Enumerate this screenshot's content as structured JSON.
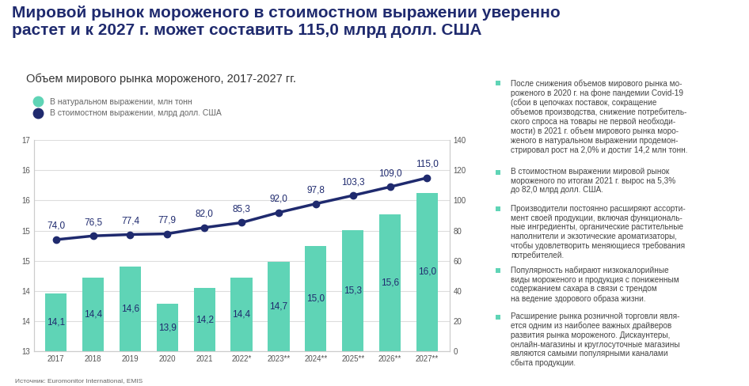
{
  "chart_data": {
    "type": "bar",
    "title": "Мировой рынок мороженого в стоимостном выражении уверенно\nрастет и к 2027 г. может составить 115,0 млрд долл. США",
    "subtitle": "Объем мирового рынка мороженого, 2017-2027 гг.",
    "categories": [
      "2017",
      "2018",
      "2019",
      "2020",
      "2021",
      "2022*",
      "2023**",
      "2024**",
      "2025**",
      "2026**",
      "2027**"
    ],
    "series": [
      {
        "name": "В натуральном выражении, млн тонн",
        "type": "bar",
        "color": "#5fd4b6",
        "values": [
          14.1,
          14.4,
          14.6,
          13.9,
          14.2,
          14.4,
          14.7,
          15.0,
          15.3,
          15.6,
          16.0
        ],
        "value_labels": [
          "14,1",
          "14,4",
          "14,6",
          "13,9",
          "14,2",
          "14,4",
          "14,7",
          "15,0",
          "15,3",
          "15,6",
          "16,0"
        ]
      },
      {
        "name": "В стоимостном выражении, млрд долл. США",
        "type": "line",
        "color": "#1f2a6e",
        "marker": "o",
        "axis": "y2",
        "values": [
          74.0,
          76.5,
          77.4,
          77.9,
          82.0,
          85.3,
          92.0,
          97.8,
          103.3,
          109.0,
          115.0
        ],
        "value_labels": [
          "74,0",
          "76,5",
          "77,4",
          "77,9",
          "82,0",
          "85,3",
          "92,0",
          "97,8",
          "103,3",
          "109,0",
          "115,0"
        ]
      }
    ],
    "ylim": [
      13,
      17
    ],
    "yticks": [
      13,
      {
        "value": 13.571428571428571,
        "label": "14"
      },
      {
        "value": 14.142857142857142,
        "label": "14"
      },
      {
        "value": 14.714285714285714,
        "label": "15"
      },
      {
        "value": 15.285714285714286,
        "label": "15"
      },
      {
        "value": 15.857142857142858,
        "label": "16"
      },
      {
        "value": 16.428571428571427,
        "label": "16"
      },
      17
    ],
    "y2lim": [
      0,
      140
    ],
    "y2ticks": [
      0,
      20,
      40,
      60,
      80,
      100,
      120,
      140
    ],
    "grid": true,
    "legend": "upper left",
    "data_labels": true,
    "source": "Источник: Euromonitor International, EMIS",
    "notes": [
      "После снижения объемов мирового рынка мо-\nроженого в 2020 г. на фоне пандемии Covid-19\n(сбои в цепочках поставок, сокращение\nобъемов производства, снижение потребитель-\nского спроса на товары не первой необходи-\nмости) в 2021 г. объем мирового рынка моро-\nженого в натуральном выражении продемон-\nстрировал рост на 2,0% и достиг 14,2 млн тонн.",
      "В стоимостном выражении мировой рынок\nмороженого по итогам 2021 г. вырос на 5,3%\nдо 82,0 млрд долл. США.",
      "Производители постоянно расширяют ассорти-\nмент своей продукции, включая функциональ-\nные ингредиенты, органические растительные\nнаполнители и экзотические ароматизаторы,\nчтобы удовлетворить меняющиеся требования\nпотребителей.",
      "Популярность набирают низкокалорийные\nвиды мороженого и продукция с пониженным\nсодержанием сахара в связи с трендом\nна ведение здорового образа жизни.",
      "Расширение рынка розничной торговли явля-\nется одним из наиболее важных драйверов\nразвития рынка мороженого. Дискаунтеры,\nонлайн-магазины и круглосуточные магазины\nявляются самыми популярными каналами\nсбыта продукции."
    ]
  }
}
